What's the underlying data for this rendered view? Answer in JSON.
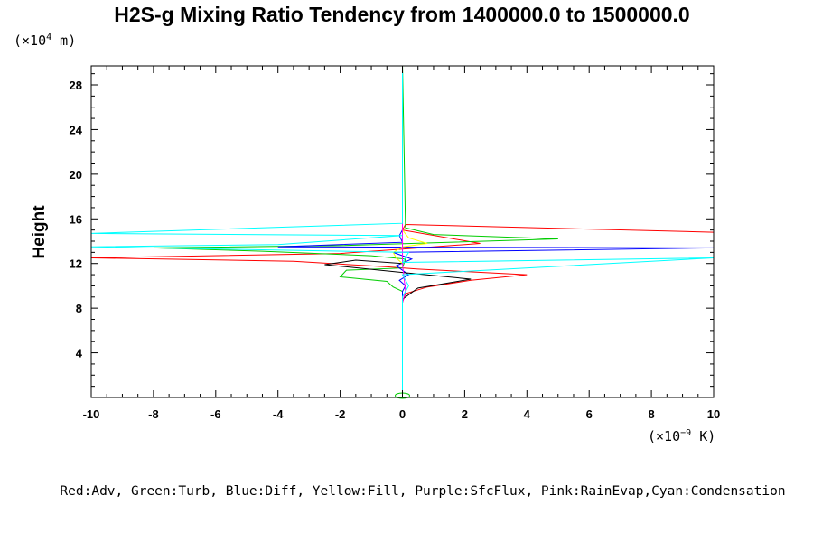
{
  "chart_data": {
    "type": "line",
    "title": "H2S-g Mixing Ratio Tendency from 1400000.0 to 1500000.0",
    "ylabel": "Height",
    "y_units_prefix": "(×10",
    "y_units_exp": "4",
    "y_units_suffix": " m)",
    "x_units_prefix": "(×10",
    "x_units_exp": "−9",
    "x_units_suffix": " K)",
    "xlim": [
      -10,
      10
    ],
    "ylim": [
      0,
      29.7
    ],
    "x_ticks": [
      -10,
      -8,
      -6,
      -4,
      -2,
      0,
      2,
      4,
      6,
      8,
      10
    ],
    "y_ticks": [
      4,
      8,
      12,
      16,
      20,
      24,
      28
    ],
    "legend_text": "Red:Adv, Green:Turb, Blue:Diff, Yellow:Fill, Purple:SfcFlux, Pink:RainEvap,Cyan:Condensation",
    "legend_position": "bottom",
    "series": [
      {
        "color": "#ff0000",
        "points": [
          [
            0,
            0
          ],
          [
            0,
            8.5
          ],
          [
            0.1,
            9.3
          ],
          [
            0.8,
            9.9
          ],
          [
            2.2,
            10.5
          ],
          [
            4.0,
            11.0
          ],
          [
            0.5,
            11.5
          ],
          [
            -0.5,
            11.7
          ],
          [
            -3.5,
            12.2
          ],
          [
            -10,
            12.5
          ],
          [
            -2.0,
            12.9
          ],
          [
            0,
            13.3
          ],
          [
            2.5,
            13.8
          ],
          [
            0,
            15.0
          ],
          [
            0.1,
            15.5
          ],
          [
            10,
            14.8
          ]
        ]
      },
      {
        "color": "#00cc00",
        "points": [
          [
            0,
            0
          ],
          [
            0,
            9.5
          ],
          [
            -0.3,
            9.9
          ],
          [
            -0.5,
            10.4
          ],
          [
            -2.0,
            10.8
          ],
          [
            -1.8,
            11.4
          ],
          [
            0,
            11.6
          ],
          [
            0.1,
            12.4
          ],
          [
            -1.0,
            12.7
          ],
          [
            -4.5,
            13.1
          ],
          [
            -8.0,
            13.4
          ],
          [
            -2.0,
            13.6
          ],
          [
            5.0,
            14.2
          ],
          [
            1.0,
            14.6
          ],
          [
            0.1,
            15.2
          ],
          [
            0,
            30
          ]
        ]
      },
      {
        "color": "#0000ff",
        "points": [
          [
            0,
            0
          ],
          [
            0,
            9.5
          ],
          [
            0.1,
            10.0
          ],
          [
            -0.1,
            10.5
          ],
          [
            0.2,
            11.0
          ],
          [
            -0.2,
            11.8
          ],
          [
            0.3,
            12.4
          ],
          [
            -0.3,
            13.0
          ],
          [
            10,
            13.4
          ],
          [
            -4.0,
            13.5
          ],
          [
            0,
            13.9
          ],
          [
            -0.1,
            14.5
          ],
          [
            0,
            15.0
          ],
          [
            0,
            30
          ]
        ]
      },
      {
        "color": "#000000",
        "points": [
          [
            0,
            0
          ],
          [
            0,
            8.8
          ],
          [
            0.5,
            9.8
          ],
          [
            2.2,
            10.6
          ],
          [
            0.0,
            11.2
          ],
          [
            -2.5,
            11.9
          ],
          [
            -1.5,
            12.3
          ],
          [
            0,
            12.0
          ],
          [
            0,
            30
          ]
        ]
      },
      {
        "color": "#ffff00",
        "points": [
          [
            0,
            12.0
          ],
          [
            -0.2,
            12.5
          ],
          [
            -0.3,
            13.0
          ],
          [
            0,
            13.5
          ],
          [
            0.8,
            13.8
          ],
          [
            0.2,
            14.3
          ],
          [
            0,
            15.0
          ]
        ]
      },
      {
        "color": "#ff00ff",
        "points": [
          [
            0,
            0
          ],
          [
            0,
            8.5
          ],
          [
            0.1,
            9.5
          ],
          [
            0,
            12.0
          ],
          [
            0,
            30
          ]
        ]
      },
      {
        "color": "#00ffff",
        "points": [
          [
            0,
            0
          ],
          [
            0,
            9.0
          ],
          [
            0.2,
            10.0
          ],
          [
            0,
            11.0
          ],
          [
            10,
            12.5
          ],
          [
            0,
            12.1
          ],
          [
            0.2,
            13.0
          ],
          [
            -10,
            13.5
          ],
          [
            -4,
            13.7
          ],
          [
            0,
            14.5
          ],
          [
            -10,
            14.7
          ],
          [
            0,
            15.6
          ],
          [
            0,
            30
          ]
        ]
      }
    ]
  }
}
